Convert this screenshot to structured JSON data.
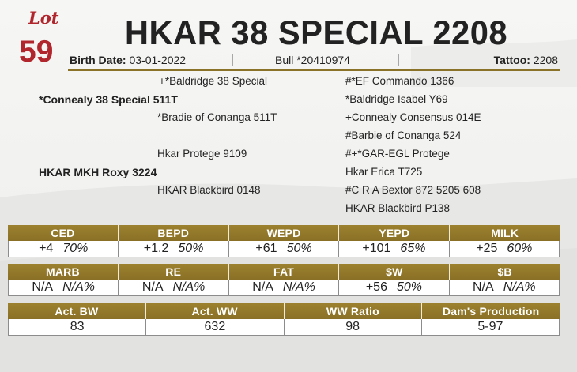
{
  "lot": {
    "word": "Lot",
    "number": "59"
  },
  "title": "HKAR 38 SPECIAL 2208",
  "info": {
    "birth_label": "Birth Date:",
    "birth_value": "03-01-2022",
    "bull_text": "Bull *20410974",
    "tattoo_label": "Tattoo:",
    "tattoo_value": "2208"
  },
  "pedigree": {
    "sire": "*Connealy 38 Special 511T",
    "dam": "HKAR MKH Roxy 3224",
    "sire_sire": "+*Baldridge 38 Special",
    "sire_dam": "*Bradie of Conanga 511T",
    "dam_sire": "Hkar Protege 9109",
    "dam_dam": "HKAR Blackbird 0148",
    "ss_sire": "#*EF Commando 1366",
    "ss_dam": "*Baldridge Isabel Y69",
    "sd_sire": "+Connealy Consensus 014E",
    "sd_dam": "#Barbie of Conanga 524",
    "ds_sire": "#+*GAR-EGL Protege",
    "ds_dam": "Hkar Erica T725",
    "dd_sire": "#C R A Bextor 872 5205 608",
    "dd_dam": "HKAR Blackbird P138"
  },
  "epd_row1": [
    {
      "label": "CED",
      "value": "+4",
      "acc": "70%"
    },
    {
      "label": "BEPD",
      "value": "+1.2",
      "acc": "50%"
    },
    {
      "label": "WEPD",
      "value": "+61",
      "acc": "50%"
    },
    {
      "label": "YEPD",
      "value": "+101",
      "acc": "65%"
    },
    {
      "label": "MILK",
      "value": "+25",
      "acc": "60%"
    }
  ],
  "epd_row2": [
    {
      "label": "MARB",
      "value": "N/A",
      "acc": "N/A%"
    },
    {
      "label": "RE",
      "value": "N/A",
      "acc": "N/A%"
    },
    {
      "label": "FAT",
      "value": "N/A",
      "acc": "N/A%"
    },
    {
      "label": "$W",
      "value": "+56",
      "acc": "50%"
    },
    {
      "label": "$B",
      "value": "N/A",
      "acc": "N/A%"
    }
  ],
  "perf": [
    {
      "label": "Act. BW",
      "value": "83"
    },
    {
      "label": "Act. WW",
      "value": "632"
    },
    {
      "label": "WW Ratio",
      "value": "98"
    },
    {
      "label": "Dam's Production",
      "value": "5-97"
    }
  ],
  "colors": {
    "accent_red": "#b0262c",
    "header_gold": "#8f752a",
    "rule_gold": "#8a7328"
  }
}
